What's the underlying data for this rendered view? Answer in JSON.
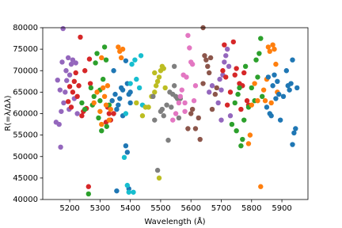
{
  "chart_data": {
    "type": "scatter",
    "xlabel": "Wavelength (Å)",
    "ylabel": "R(=λ/Δλ)",
    "xlim": [
      5111,
      5986
    ],
    "ylim": [
      40000,
      80000
    ],
    "xticks": [
      5200,
      5300,
      5400,
      5500,
      5600,
      5700,
      5800,
      5900
    ],
    "yticks": [
      40000,
      45000,
      50000,
      55000,
      60000,
      65000,
      70000,
      75000,
      80000
    ],
    "series": [
      {
        "color": "#9467bd",
        "x": [
          5155,
          5160,
          5165,
          5170,
          5175,
          5178,
          5180,
          5185,
          5188,
          5190,
          5195,
          5198,
          5200,
          5205,
          5210,
          5215,
          5220,
          5168,
          5172,
          5225
        ],
        "y": [
          58000,
          67800,
          57500,
          52200,
          72000,
          79800,
          62500,
          65000,
          70000,
          67700,
          73000,
          61000,
          69000,
          71500,
          72500,
          63500,
          71800,
          65500,
          60500,
          60000
        ]
      },
      {
        "color": "#d62728",
        "x": [
          5195,
          5200,
          5205,
          5210,
          5215,
          5220,
          5225,
          5230,
          5235,
          5240,
          5245,
          5255,
          5262,
          5265,
          5268,
          5250,
          5320,
          5330,
          5335,
          5345,
          5325
        ],
        "y": [
          62800,
          66300,
          61500,
          65000,
          67500,
          69500,
          64000,
          66500,
          77800,
          59500,
          60500,
          61200,
          43000,
          72700,
          67000,
          70000,
          58000,
          60000,
          58500,
          60000,
          61500
        ]
      },
      {
        "color": "#2ca02c",
        "x": [
          5240,
          5250,
          5262,
          5270,
          5275,
          5280,
          5290,
          5295,
          5300,
          5305,
          5310,
          5315,
          5320,
          5322,
          5330,
          5285,
          5300
        ],
        "y": [
          62500,
          61000,
          41300,
          66000,
          62000,
          64000,
          74000,
          59000,
          63000,
          56000,
          68000,
          75500,
          72500,
          57000,
          62000,
          71800,
          65500
        ]
      },
      {
        "color": "#ff7f0e",
        "x": [
          5280,
          5290,
          5300,
          5305,
          5310,
          5315,
          5320,
          5325,
          5330,
          5335,
          5340,
          5305,
          5360,
          5365,
          5370,
          5375
        ],
        "y": [
          62500,
          65000,
          60500,
          57500,
          66000,
          64000,
          62000,
          66500,
          58500,
          61000,
          63000,
          73000,
          75500,
          74500,
          73000,
          75000
        ]
      },
      {
        "color": "#1f77b4",
        "x": [
          5340,
          5345,
          5350,
          5355,
          5360,
          5365,
          5370,
          5375,
          5385,
          5390,
          5395,
          5400,
          5355,
          5385,
          5390,
          5395,
          5375,
          5400
        ],
        "y": [
          63000,
          70000,
          64500,
          61000,
          62000,
          63500,
          66000,
          65500,
          72300,
          67000,
          64500,
          62500,
          42000,
          52500,
          51000,
          42500,
          59500,
          65000
        ]
      },
      {
        "color": "#17becf",
        "x": [
          5380,
          5390,
          5395,
          5410,
          5385,
          5400,
          5405,
          5415,
          5420,
          5430,
          5435,
          5440
        ],
        "y": [
          49800,
          43300,
          41700,
          41700,
          60000,
          67000,
          71500,
          72500,
          68000,
          66000,
          73500,
          62000
        ]
      },
      {
        "color": "#bcbd22",
        "x": [
          5420,
          5440,
          5450,
          5460,
          5470,
          5480,
          5485,
          5490,
          5495,
          5500,
          5505,
          5510,
          5495,
          5515,
          5480
        ],
        "y": [
          62500,
          59500,
          61500,
          61500,
          64000,
          65000,
          66500,
          67500,
          68500,
          70000,
          71000,
          70500,
          45000,
          66000,
          69500
        ]
      },
      {
        "color": "#7f7f7f",
        "x": [
          5475,
          5480,
          5490,
          5500,
          5505,
          5510,
          5520,
          5525,
          5530,
          5535,
          5540,
          5545,
          5550,
          5545,
          5555,
          5560,
          5565
        ],
        "y": [
          64000,
          58500,
          46800,
          60500,
          61000,
          59500,
          62000,
          53800,
          65000,
          61500,
          64500,
          66500,
          64000,
          71000,
          63500,
          59000,
          63500
        ]
      },
      {
        "color": "#e377c2",
        "x": [
          5540,
          5550,
          5560,
          5565,
          5570,
          5575,
          5580,
          5585,
          5590,
          5595,
          5600,
          5605,
          5580,
          5610,
          5615
        ],
        "y": [
          58500,
          60000,
          62500,
          64000,
          65500,
          69000,
          60500,
          68500,
          78200,
          75300,
          72000,
          71500,
          62500,
          63000,
          66500
        ]
      },
      {
        "color": "#8c564b",
        "x": [
          5590,
          5600,
          5605,
          5615,
          5625,
          5630,
          5640,
          5645,
          5650,
          5655,
          5660,
          5665,
          5640,
          5670,
          5680,
          5685
        ],
        "y": [
          56500,
          60000,
          61000,
          56500,
          59000,
          54000,
          67000,
          73500,
          72500,
          71000,
          69500,
          73000,
          80000,
          61000,
          64500,
          66000
        ]
      },
      {
        "color": "#9467bd",
        "x": [
          5660,
          5670,
          5690,
          5700,
          5705,
          5710,
          5715,
          5720,
          5725,
          5730,
          5700,
          5695
        ],
        "y": [
          65000,
          66500,
          62500,
          65500,
          69000,
          72000,
          73500,
          75000,
          71000,
          59500,
          58500,
          68000
        ]
      },
      {
        "color": "#d62728",
        "x": [
          5705,
          5710,
          5715,
          5720,
          5730,
          5740,
          5745,
          5750,
          5760,
          5765,
          5770,
          5775,
          5785,
          5790
        ],
        "y": [
          70000,
          76000,
          68500,
          62000,
          65000,
          76700,
          69000,
          70500,
          67000,
          61000,
          66500,
          69500,
          63000,
          62000
        ]
      },
      {
        "color": "#2ca02c",
        "x": [
          5735,
          5745,
          5750,
          5755,
          5760,
          5765,
          5770,
          5775,
          5780,
          5790,
          5800,
          5810,
          5815,
          5820,
          5830,
          5825,
          5835
        ],
        "y": [
          57500,
          62500,
          56000,
          64500,
          66000,
          52500,
          54000,
          58500,
          71000,
          61500,
          66000,
          63000,
          72500,
          68500,
          77500,
          74000,
          64000
        ]
      },
      {
        "color": "#ff7f0e",
        "x": [
          5790,
          5795,
          5800,
          5810,
          5820,
          5830,
          5840,
          5845,
          5850,
          5855,
          5860,
          5865,
          5870,
          5875,
          5880,
          5885
        ],
        "y": [
          53000,
          55000,
          62000,
          67000,
          63000,
          43000,
          65500,
          63000,
          68000,
          75500,
          74500,
          62500,
          76000,
          75000,
          71500,
          65000
        ]
      },
      {
        "color": "#1f77b4",
        "x": [
          5850,
          5855,
          5860,
          5865,
          5870,
          5875,
          5880,
          5885,
          5890,
          5895,
          5905,
          5915,
          5920,
          5925,
          5930,
          5935,
          5935,
          5940,
          5945,
          5950
        ],
        "y": [
          61500,
          68500,
          60000,
          59500,
          66500,
          69000,
          63500,
          67500,
          64500,
          58500,
          64000,
          70000,
          66500,
          65500,
          67000,
          72500,
          52800,
          55500,
          56500,
          66000
        ]
      }
    ]
  }
}
